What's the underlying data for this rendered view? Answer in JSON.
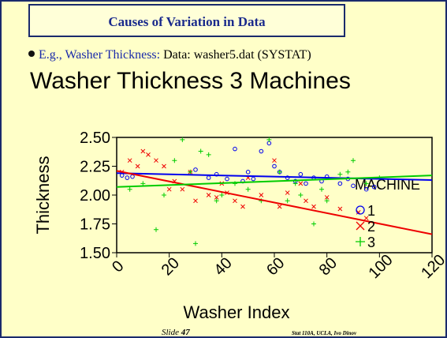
{
  "slide": {
    "title": "Causes of Variation in Data",
    "bullet_lead": "E.g., Washer Thickness:",
    "bullet_rest": "Data: washer5.dat (SYSTAT)",
    "slide_label": "Slide",
    "slide_number": "47",
    "footer": "Stat 110A, UCLA, Ivo Dinov"
  },
  "chart_data": {
    "type": "scatter",
    "title": "Washer Thickness 3 Machines",
    "x_label": "Washer Index",
    "y_label": "Thickness",
    "legend_title": "MACHINE",
    "xlim": [
      0,
      120
    ],
    "xticks": [
      0,
      20,
      40,
      60,
      80,
      100,
      120
    ],
    "ylim": [
      1.5,
      2.5
    ],
    "yticks": [
      {
        "value": 1.5,
        "label": "1.50"
      },
      {
        "value": 1.75,
        "label": "1.75"
      },
      {
        "value": 2,
        "label": "2.00"
      },
      {
        "value": 2.25,
        "label": "2.25"
      },
      {
        "value": 2.5,
        "label": "2.50"
      }
    ],
    "series": [
      {
        "name": "1",
        "color": "#0000ee",
        "marker": "circle",
        "x": [
          2,
          4,
          6,
          30,
          35,
          38,
          42,
          45,
          48,
          50,
          52,
          55,
          58,
          60,
          62,
          65,
          68,
          70,
          72,
          75,
          78,
          80,
          85,
          88,
          90,
          95,
          98
        ],
        "values": [
          2.17,
          2.15,
          2.16,
          2.22,
          2.15,
          2.18,
          2.14,
          2.4,
          2.12,
          2.2,
          2.14,
          2.38,
          2.45,
          2.25,
          2.2,
          2.15,
          2.12,
          2.18,
          2.1,
          2.15,
          2.12,
          2.16,
          2.1,
          2.14,
          2.08,
          2.05,
          2.07
        ],
        "fit": [
          2.19,
          2.13
        ]
      },
      {
        "name": "2",
        "color": "#ee0000",
        "marker": "x",
        "x": [
          2,
          5,
          8,
          10,
          12,
          15,
          18,
          20,
          22,
          25,
          28,
          30,
          35,
          38,
          40,
          42,
          45,
          48,
          50,
          55,
          60,
          62,
          65,
          70,
          72,
          75,
          80,
          85,
          92,
          95
        ],
        "values": [
          2.2,
          2.3,
          2.25,
          2.38,
          2.35,
          2.3,
          2.25,
          2.05,
          2.12,
          2.05,
          2.2,
          1.95,
          2.0,
          1.98,
          2.1,
          2.02,
          1.95,
          1.9,
          2.15,
          2.0,
          2.3,
          1.9,
          2.02,
          2.1,
          1.95,
          1.9,
          1.98,
          1.88,
          1.85,
          1.8
        ],
        "fit": [
          2.21,
          1.66
        ]
      },
      {
        "name": "3",
        "color": "#00cc00",
        "marker": "plus",
        "x": [
          5,
          10,
          15,
          18,
          22,
          25,
          28,
          30,
          32,
          35,
          38,
          40,
          45,
          50,
          55,
          58,
          62,
          65,
          68,
          70,
          75,
          78,
          80,
          85,
          88,
          90,
          95,
          100
        ],
        "values": [
          2.05,
          2.1,
          1.7,
          2.0,
          2.3,
          2.48,
          2.2,
          1.58,
          2.38,
          2.35,
          1.95,
          2.0,
          2.1,
          2.05,
          1.95,
          2.48,
          2.2,
          1.95,
          2.1,
          2.0,
          1.75,
          2.05,
          1.95,
          2.18,
          2.2,
          2.3,
          2.1,
          2.15
        ],
        "fit": [
          2.07,
          2.17
        ]
      }
    ]
  }
}
